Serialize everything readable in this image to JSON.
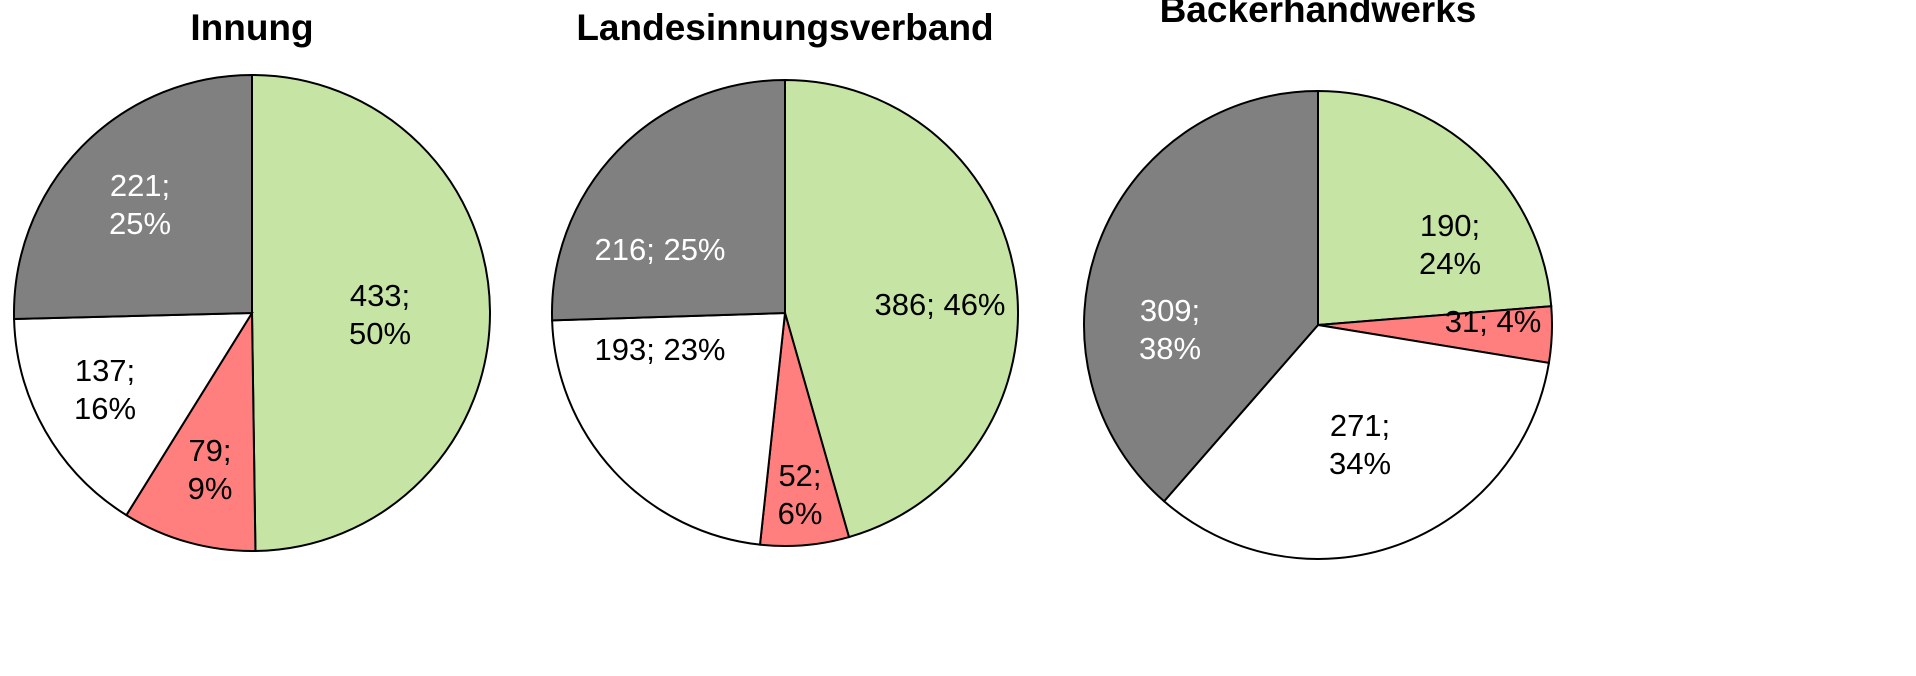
{
  "chart_data": [
    {
      "type": "pie",
      "title": "Innung",
      "values": [
        433,
        79,
        137,
        221
      ],
      "value_labels": [
        "433; 50%",
        "79; 9%",
        "137; 16%",
        "221; 25%"
      ],
      "colors": [
        "#c6e5a5",
        "#ff7f7f",
        "#ffffff",
        "#808080"
      ]
    },
    {
      "type": "pie",
      "title": "Landesinnungsverband",
      "values": [
        386,
        52,
        193,
        216
      ],
      "value_labels": [
        "386; 46%",
        "52; 6%",
        "193; 23%",
        "216; 25%"
      ],
      "colors": [
        "#c6e5a5",
        "#ff7f7f",
        "#ffffff",
        "#808080"
      ]
    },
    {
      "type": "pie",
      "title": "Bäckerhandwerks",
      "values": [
        190,
        31,
        271,
        309
      ],
      "value_labels": [
        "190; 24%",
        "31; 4%",
        "271; 34%",
        "309; 38%"
      ],
      "colors": [
        "#c6e5a5",
        "#ff7f7f",
        "#ffffff",
        "#808080"
      ]
    }
  ]
}
